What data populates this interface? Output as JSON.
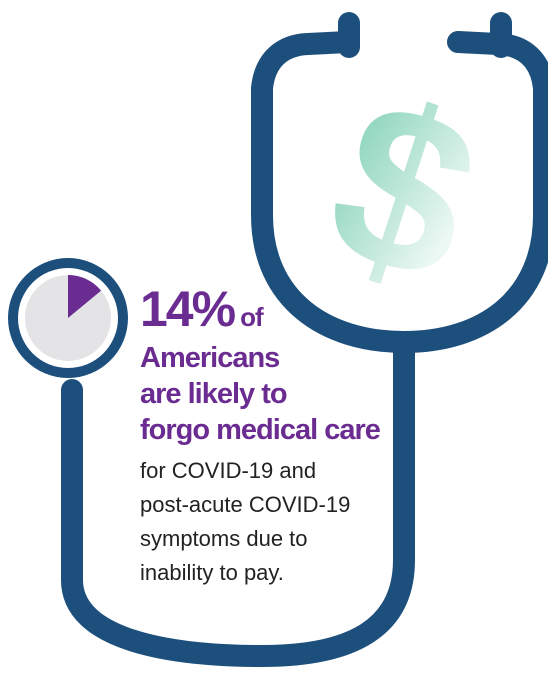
{
  "stat": {
    "value": "14%",
    "suffix": "of",
    "fraction": 0.14
  },
  "headline": [
    "Americans",
    "are likely to",
    "forgo medical care"
  ],
  "detail": [
    "for COVID-19 and",
    "post-acute COVID-19",
    "symptoms due to",
    "inability to pay."
  ],
  "colors": {
    "stethoscope": "#1d4f7c",
    "accent_purple": "#6b2c91",
    "gauge_background": "#e4e4e6",
    "dollar_green": "#7fd0b4",
    "text_dark": "#222222"
  },
  "icons": {
    "stethoscope": "stethoscope-icon",
    "dollar": "dollar-sign-icon",
    "gauge": "pie-gauge-icon"
  }
}
